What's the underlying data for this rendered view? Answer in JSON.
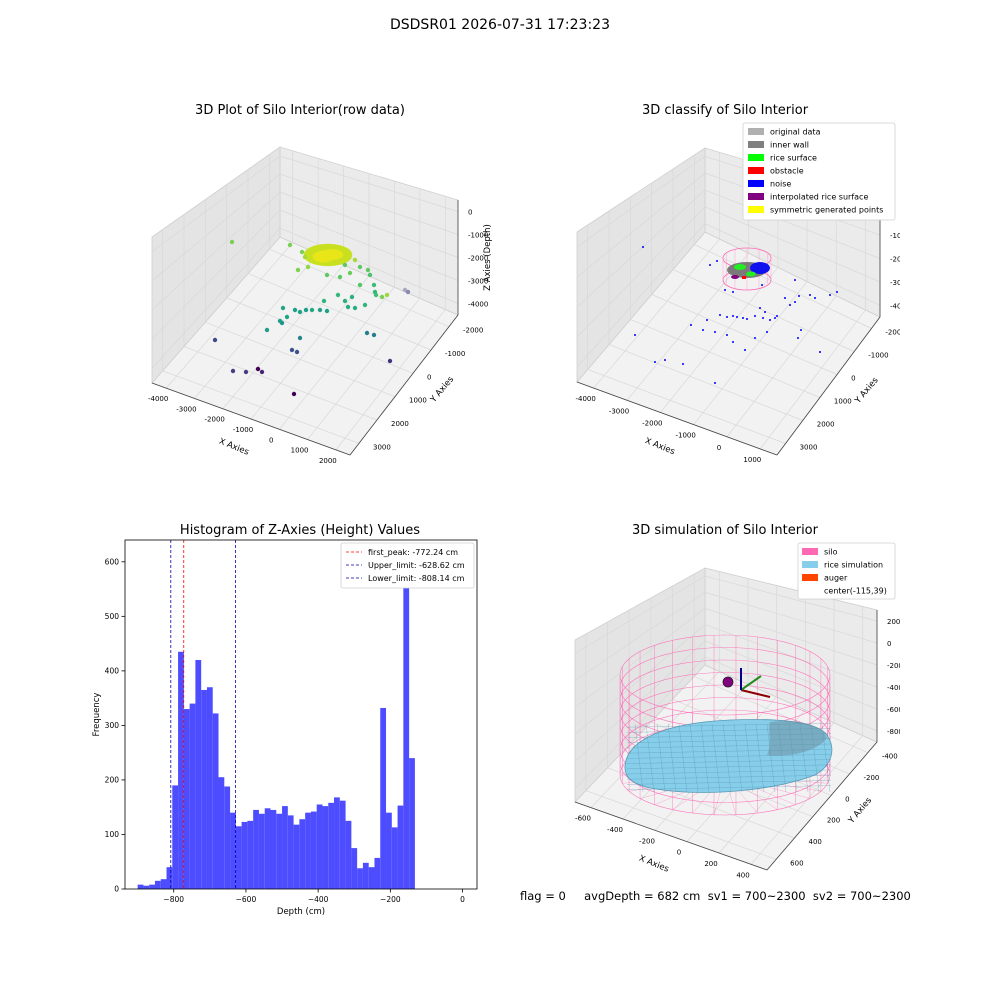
{
  "suptitle": "DSDSR01 2026-07-31 17:23:23",
  "footer": "flag = 0     avgDepth = 682 cm  sv1 = 700~2300  sv2 = 700~2300",
  "colors": {
    "hist_bar": "#4d4dff",
    "first_peak": "#ff0000",
    "limits": "#0000aa",
    "silo": "#ff69b4",
    "rice": "#87ceeb",
    "auger": "#ff4500"
  },
  "chart_data": [
    {
      "type": "scatter",
      "subtype": "3d",
      "title": "3D Plot of Silo Interior(row data)",
      "xlabel": "X Axies",
      "ylabel": "Y Axies",
      "zlabel": "Z Axies (Depth)",
      "x_ticks": [
        "-4000",
        "-3000",
        "-2000",
        "-1000",
        "0",
        "1000",
        "2000"
      ],
      "y_ticks": [
        "-2000",
        "-1000",
        "0",
        "1000",
        "2000",
        "3000"
      ],
      "z_ticks": [
        "0",
        "-1000",
        "-2000",
        "-3000",
        "-4000"
      ],
      "colormap": "viridis"
    },
    {
      "type": "scatter",
      "subtype": "3d",
      "title": "3D classify of Silo Interior",
      "xlabel": "X Axies",
      "ylabel": "Y Axies",
      "zlabel": "Z Axies (Depth)",
      "x_ticks": [
        "-4000",
        "-3000",
        "-2000",
        "-1000",
        "0",
        "1000"
      ],
      "y_ticks": [
        "-2000",
        "-1000",
        "0",
        "1000",
        "2000",
        "3000"
      ],
      "z_ticks": [
        "0",
        "-1000",
        "-2000",
        "-3000",
        "-4000"
      ],
      "legend_position": "top-right",
      "legend": [
        {
          "label": "original data",
          "color": "#b0b0b0"
        },
        {
          "label": "inner wall",
          "color": "#808080"
        },
        {
          "label": "rice surface",
          "color": "#00ff00"
        },
        {
          "label": "obstacle",
          "color": "#ff0000"
        },
        {
          "label": "noise",
          "color": "#0000ff"
        },
        {
          "label": "interpolated rice surface",
          "color": "#800080"
        },
        {
          "label": "symmetric generated points",
          "color": "#ffff00"
        }
      ]
    },
    {
      "type": "bar",
      "subtype": "histogram",
      "title": "Histogram of Z-Axies (Height) Values",
      "xlabel": "Depth (cm)",
      "ylabel": "Frequency",
      "xlim": [
        -935,
        40
      ],
      "ylim": [
        0,
        640
      ],
      "x_ticks": [
        -800,
        -600,
        -400,
        -200,
        0
      ],
      "y_ticks": [
        0,
        100,
        200,
        300,
        400,
        500,
        600
      ],
      "bin_start": -900,
      "bin_width": 16,
      "values": [
        8,
        6,
        8,
        15,
        18,
        40,
        190,
        435,
        330,
        340,
        420,
        365,
        370,
        322,
        205,
        188,
        140,
        115,
        123,
        125,
        145,
        138,
        148,
        145,
        138,
        152,
        135,
        118,
        128,
        140,
        142,
        155,
        152,
        158,
        168,
        162,
        125,
        75,
        38,
        48,
        40,
        57,
        332,
        140,
        113,
        153,
        610,
        240
      ],
      "vlines": [
        {
          "label": "first_peak: -772.24 cm",
          "x": -772.24,
          "color": "#ff0000"
        },
        {
          "label": "Upper_limit: -628.62 cm",
          "x": -628.62,
          "color": "#0000aa"
        },
        {
          "label": "Lower_limit: -808.14 cm",
          "x": -808.14,
          "color": "#0000aa"
        }
      ],
      "legend_position": "top-right"
    },
    {
      "type": "area",
      "subtype": "3d-surface",
      "title": "3D simulation of Silo Interior",
      "xlabel": "X Axies",
      "ylabel": "Y Axies",
      "zlabel": "Z Axies (Depth)",
      "x_ticks": [
        "-600",
        "-400",
        "-200",
        "0",
        "200",
        "400"
      ],
      "y_ticks": [
        "-400",
        "-200",
        "0",
        "200",
        "400",
        "600"
      ],
      "z_ticks": [
        "200",
        "0",
        "-200",
        "-400",
        "-600",
        "-800"
      ],
      "legend_position": "top-right",
      "legend": [
        {
          "label": "silo",
          "color": "#ff69b4"
        },
        {
          "label": "rice simulation",
          "color": "#87ceeb"
        },
        {
          "label": "auger",
          "color": "#ff4500"
        },
        {
          "label": "center(-115,39)",
          "color": ""
        }
      ]
    }
  ]
}
